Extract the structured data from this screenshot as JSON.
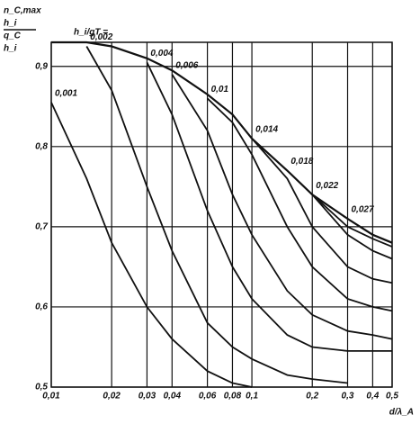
{
  "chart_data": {
    "type": "line",
    "ylabel": [
      "n_C,max",
      "h_i",
      "q_C",
      "h_i"
    ],
    "xlabel": "d/λ_A",
    "annotations": [
      "h_i/gT ="
    ],
    "log_x": true,
    "grid": true,
    "color": "#111111",
    "xlim": [
      0.01,
      0.5
    ],
    "ylim": [
      0.5,
      0.93
    ],
    "xticks": [
      {
        "value": 0.01,
        "label": "0,01"
      },
      {
        "value": 0.02,
        "label": "0,02"
      },
      {
        "value": 0.03,
        "label": "0,03"
      },
      {
        "value": 0.04,
        "label": "0,04"
      },
      {
        "value": 0.06,
        "label": "0,06"
      },
      {
        "value": 0.08,
        "label": "0,08"
      },
      {
        "value": 0.1,
        "label": "0,1"
      },
      {
        "value": 0.2,
        "label": "0,2"
      },
      {
        "value": 0.3,
        "label": "0,3"
      },
      {
        "value": 0.4,
        "label": "0,4"
      },
      {
        "value": 0.5,
        "label": "0,5"
      }
    ],
    "yticks": [
      {
        "value": 0.5,
        "label": "0,5"
      },
      {
        "value": 0.6,
        "label": "0,6"
      },
      {
        "value": 0.7,
        "label": "0,7"
      },
      {
        "value": 0.8,
        "label": "0,8"
      },
      {
        "value": 0.9,
        "label": "0,9"
      }
    ],
    "x": [
      0.01,
      0.015,
      0.02,
      0.03,
      0.04,
      0.06,
      0.08,
      0.1,
      0.15,
      0.2,
      0.3,
      0.4,
      0.5
    ],
    "series": [
      {
        "values": [
          0.93,
          0.93,
          0.925,
          0.91,
          0.895,
          0.865,
          0.84,
          0.81,
          0.77,
          0.74,
          0.71,
          0.69,
          0.68
        ]
      },
      {
        "name": "0,001",
        "values": [
          0.855,
          0.76,
          0.68,
          0.6,
          0.56,
          0.52,
          0.505,
          0.5,
          null,
          null,
          null,
          null,
          null
        ]
      },
      {
        "name": "0,002",
        "values": [
          null,
          0.925,
          0.87,
          0.75,
          0.67,
          0.58,
          0.55,
          0.535,
          0.515,
          0.51,
          0.505,
          null,
          null
        ]
      },
      {
        "name": "0,004",
        "values": [
          null,
          null,
          null,
          0.905,
          0.84,
          0.72,
          0.65,
          0.61,
          0.565,
          0.55,
          0.545,
          0.545,
          0.545
        ]
      },
      {
        "name": "0,006",
        "values": [
          null,
          null,
          null,
          null,
          0.89,
          0.82,
          0.74,
          0.69,
          0.62,
          0.59,
          0.57,
          0.565,
          0.56
        ]
      },
      {
        "name": "0,01",
        "values": [
          null,
          null,
          null,
          null,
          null,
          0.86,
          0.83,
          0.79,
          0.7,
          0.65,
          0.61,
          0.6,
          0.595
        ]
      },
      {
        "name": "0,014",
        "values": [
          null,
          null,
          null,
          null,
          null,
          null,
          null,
          0.81,
          0.76,
          0.7,
          0.65,
          0.635,
          0.63
        ]
      },
      {
        "name": "0,018",
        "values": [
          null,
          null,
          null,
          null,
          null,
          null,
          null,
          null,
          0.77,
          0.74,
          0.69,
          0.67,
          0.66
        ]
      },
      {
        "name": "0,022",
        "values": [
          null,
          null,
          null,
          null,
          null,
          null,
          null,
          null,
          null,
          0.74,
          0.7,
          0.685,
          0.675
        ]
      },
      {
        "name": "0,027",
        "values": [
          null,
          null,
          null,
          null,
          null,
          null,
          null,
          null,
          null,
          null,
          0.71,
          0.69,
          0.68
        ]
      }
    ]
  }
}
